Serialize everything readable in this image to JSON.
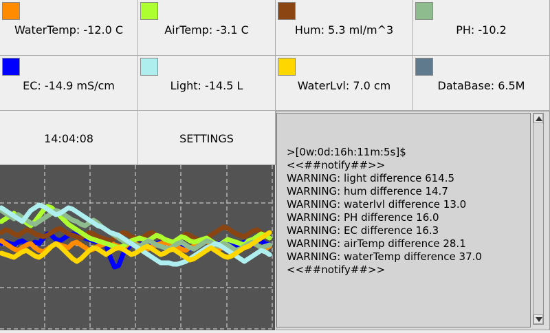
{
  "sensors": [
    {
      "label": "WaterTemp: -12.0 C",
      "color": "#FF8C00"
    },
    {
      "label": "AirTemp: -3.1 C",
      "color": "#ADFF2F"
    },
    {
      "label": "Hum: 5.3 ml/m^3",
      "color": "#8B4513"
    },
    {
      "label": "PH: -10.2",
      "color": "#8FBC8F"
    },
    {
      "label": "EC: -14.9 mS/cm",
      "color": "#0000FF"
    },
    {
      "label": "Light: -14.5 L",
      "color": "#AFEEEE"
    },
    {
      "label": "WaterLvl: 7.0 cm",
      "color": "#FFD700"
    },
    {
      "label": "DataBase: 6.5M",
      "color": "#5F7A8C"
    }
  ],
  "clock": "14:04:08",
  "settings_label": "SETTINGS",
  "console_lines": [
    ">[0w:0d:16h:11m:5s]$",
    "<<##notify##>>",
    "WARNING: light difference 614.5",
    "WARNING: hum difference 14.7",
    "WARNING: waterlvl difference 13.0",
    "WARNING: PH difference 16.0",
    "WARNING: EC difference 16.3",
    "WARNING: airTemp difference 28.1",
    "WARNING: waterTemp difference 37.0",
    "<<##notify##>>"
  ],
  "chart_data": {
    "type": "line",
    "grid": true,
    "background": "#535353",
    "series": [
      {
        "color": "#0000FF",
        "values": [
          2,
          3,
          2,
          1,
          3,
          4,
          2,
          1,
          3,
          2,
          6,
          9,
          8,
          5,
          4,
          6,
          8,
          9,
          8,
          7,
          6,
          5,
          4,
          3,
          2,
          1,
          -8,
          -15,
          -14,
          -6,
          -2,
          2,
          4,
          5,
          3,
          2,
          1,
          2,
          3,
          4,
          2,
          1,
          3,
          2,
          0,
          -2,
          -1,
          1,
          3,
          4,
          2,
          1,
          2,
          3,
          4,
          3,
          1,
          2,
          3,
          2,
          1,
          3,
          4,
          2,
          1
        ]
      },
      {
        "color": "#FF8C00",
        "values": [
          4,
          2,
          0,
          -2,
          -3,
          -1,
          1,
          2,
          -1,
          -3,
          -4,
          -2,
          0,
          2,
          1,
          0,
          -1,
          2,
          3,
          1,
          -1,
          -3,
          -2,
          0,
          1,
          2,
          3,
          1,
          0,
          -2,
          1,
          3,
          2,
          0,
          -1,
          -2,
          0,
          1,
          2,
          3,
          2,
          0,
          -1,
          -2,
          -3,
          -1,
          0,
          2,
          3,
          4,
          1,
          -1,
          -2,
          0,
          1,
          -2,
          -4,
          -3,
          -1,
          0,
          2,
          1,
          -1,
          -2,
          0
        ]
      },
      {
        "color": "#8B4513",
        "values": [
          10,
          12,
          11,
          9,
          8,
          10,
          12,
          11,
          9,
          8,
          7,
          8,
          10,
          12,
          13,
          11,
          9,
          8,
          7,
          6,
          8,
          10,
          9,
          7,
          6,
          5,
          4,
          6,
          8,
          10,
          9,
          7,
          6,
          5,
          7,
          9,
          10,
          8,
          6,
          5,
          4,
          3,
          5,
          7,
          9,
          8,
          6,
          5,
          4,
          6,
          8,
          10,
          12,
          14,
          13,
          11,
          9,
          8,
          7,
          9,
          11,
          12,
          10,
          8,
          6
        ]
      },
      {
        "color": "#ADFF2F",
        "values": [
          18,
          20,
          22,
          24,
          21,
          19,
          17,
          15,
          18,
          22,
          26,
          29,
          28,
          25,
          22,
          19,
          16,
          14,
          12,
          10,
          8,
          6,
          5,
          4,
          3,
          2,
          1,
          0,
          -1,
          0,
          2,
          4,
          5,
          6,
          5,
          4,
          6,
          8,
          7,
          5,
          4,
          3,
          5,
          7,
          6,
          4,
          3,
          4,
          5,
          6,
          4,
          2,
          1,
          3,
          5,
          4,
          3,
          2,
          1,
          4,
          5,
          7,
          9,
          8,
          6
        ]
      },
      {
        "color": "#8FBC8F",
        "values": [
          26,
          24,
          22,
          20,
          23,
          21,
          19,
          17,
          16,
          18,
          20,
          22,
          24,
          26,
          25,
          23,
          21,
          19,
          18,
          16,
          15,
          17,
          19,
          17,
          14,
          12,
          10,
          8,
          6,
          4,
          3,
          2,
          1,
          0,
          2,
          4,
          3,
          1,
          0,
          -1,
          -2,
          0,
          2,
          3,
          1,
          -1,
          -2,
          0,
          2,
          4,
          3,
          1,
          0,
          2,
          1,
          -1,
          -3,
          -2,
          0,
          2,
          3,
          1,
          -1,
          0,
          1
        ]
      },
      {
        "color": "#AFEEEE",
        "values": [
          28,
          26,
          24,
          22,
          20,
          18,
          22,
          26,
          28,
          30,
          29,
          27,
          25,
          23,
          24,
          26,
          28,
          27,
          25,
          23,
          21,
          19,
          17,
          15,
          14,
          12,
          10,
          9,
          8,
          6,
          4,
          2,
          0,
          -2,
          -4,
          -6,
          -8,
          -10,
          -12,
          -12,
          -12,
          -13,
          -13,
          -12,
          -11,
          -9,
          -7,
          -5,
          -3,
          -1,
          0,
          2,
          1,
          -1,
          -3,
          -5,
          -7,
          -9,
          -11,
          -9,
          -7,
          -5,
          -3,
          -4,
          -6
        ]
      },
      {
        "color": "#FFD700",
        "values": [
          -5,
          -6,
          -7,
          -8,
          -6,
          -4,
          -3,
          -5,
          -7,
          -8,
          -6,
          -3,
          0,
          2,
          0,
          -3,
          -6,
          -9,
          -11,
          -9,
          -6,
          -3,
          -1,
          -2,
          -4,
          -6,
          -4,
          -2,
          -1,
          -2,
          -4,
          -6,
          -5,
          -3,
          -1,
          0,
          -2,
          -4,
          -6,
          -5,
          -3,
          -2,
          -4,
          -6,
          -8,
          -10,
          -9,
          -7,
          -5,
          -3,
          -1,
          -3,
          -5,
          -7,
          -8,
          -7,
          -5,
          -3,
          -1,
          0,
          2,
          4,
          6,
          8,
          10
        ]
      }
    ]
  }
}
